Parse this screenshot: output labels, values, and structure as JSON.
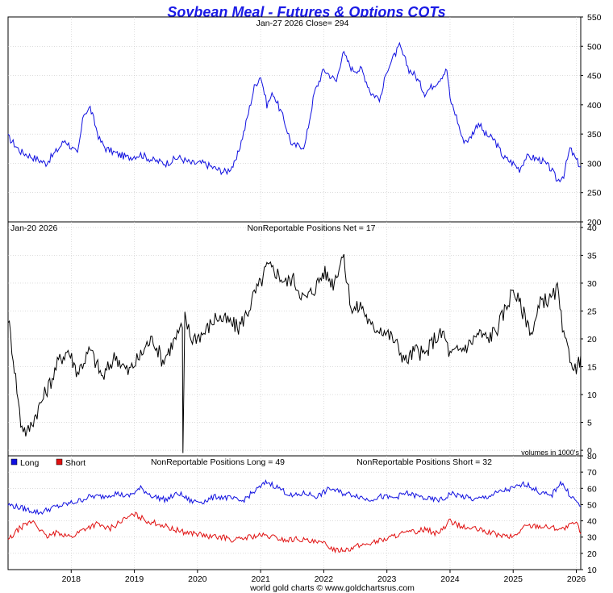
{
  "title": "Soybean Meal - Futures & Options COTs",
  "footer": "world gold charts © www.goldchartsrus.com",
  "colors": {
    "title": "#1a1ae6",
    "price": "#1010e0",
    "net": "#000000",
    "long": "#1010e0",
    "short": "#e01010",
    "grid": "#c8c8c8"
  },
  "chart_data": [
    {
      "type": "line",
      "panel": "price",
      "header": "Jan-27  2026   Close= 294",
      "ylim": [
        200,
        550
      ],
      "yticks": [
        200,
        250,
        300,
        350,
        400,
        450,
        500,
        550
      ],
      "grid": true,
      "series": [
        {
          "color": "#1010e0",
          "x": [
            2017.0,
            2017.2,
            2017.4,
            2017.6,
            2017.8,
            2017.9,
            2018.1,
            2018.2,
            2018.3,
            2018.45,
            2018.55,
            2018.75,
            2018.9,
            2019.1,
            2019.3,
            2019.5,
            2019.7,
            2019.9,
            2020.1,
            2020.3,
            2020.45,
            2020.6,
            2020.75,
            2020.9,
            2021.0,
            2021.1,
            2021.2,
            2021.35,
            2021.5,
            2021.7,
            2021.85,
            2022.0,
            2022.2,
            2022.3,
            2022.45,
            2022.6,
            2022.75,
            2022.9,
            2023.0,
            2023.1,
            2023.2,
            2023.35,
            2023.45,
            2023.6,
            2023.8,
            2023.95,
            2024.0,
            2024.1,
            2024.2,
            2024.3,
            2024.45,
            2024.55,
            2024.7,
            2024.85,
            2025.0,
            2025.1,
            2025.2,
            2025.3,
            2025.45,
            2025.6,
            2025.7,
            2025.8,
            2025.9,
            2026.0,
            2026.07
          ],
          "y": [
            345,
            320,
            310,
            300,
            325,
            340,
            315,
            385,
            395,
            340,
            325,
            315,
            310,
            315,
            305,
            300,
            310,
            300,
            300,
            290,
            285,
            300,
            360,
            430,
            450,
            400,
            420,
            380,
            330,
            330,
            420,
            460,
            440,
            490,
            460,
            460,
            420,
            410,
            460,
            480,
            500,
            460,
            450,
            420,
            440,
            460,
            410,
            380,
            340,
            340,
            370,
            350,
            340,
            310,
            300,
            290,
            310,
            310,
            305,
            290,
            270,
            280,
            325,
            305,
            294
          ]
        }
      ]
    },
    {
      "type": "line",
      "panel": "net",
      "header_date": "Jan-20  2026",
      "header": "NonReportable Positions Net = 17",
      "units_note": "volumes in 1000's",
      "ylim": [
        -1,
        41
      ],
      "yticks": [
        0,
        5,
        10,
        15,
        20,
        25,
        30,
        35,
        40
      ],
      "grid": true,
      "series": [
        {
          "color": "#000000",
          "x": [
            2017.0,
            2017.1,
            2017.2,
            2017.3,
            2017.5,
            2017.7,
            2017.8,
            2017.95,
            2018.1,
            2018.3,
            2018.5,
            2018.7,
            2018.9,
            2019.1,
            2019.2,
            2019.3,
            2019.45,
            2019.6,
            2019.7,
            2019.76,
            2019.77,
            2019.8,
            2019.9,
            2020.1,
            2020.3,
            2020.5,
            2020.65,
            2020.8,
            2020.9,
            2021.0,
            2021.1,
            2021.25,
            2021.4,
            2021.5,
            2021.7,
            2021.85,
            2022.0,
            2022.15,
            2022.3,
            2022.45,
            2022.6,
            2022.75,
            2022.9,
            2023.1,
            2023.2,
            2023.3,
            2023.45,
            2023.6,
            2023.75,
            2023.9,
            2024.0,
            2024.15,
            2024.3,
            2024.45,
            2024.6,
            2024.75,
            2024.9,
            2025.0,
            2025.15,
            2025.3,
            2025.45,
            2025.6,
            2025.7,
            2025.8,
            2025.9,
            2026.0,
            2026.07
          ],
          "y": [
            24,
            15,
            5,
            3,
            8,
            13,
            16,
            18,
            14,
            18,
            13,
            17,
            14,
            17,
            19,
            20,
            16,
            19,
            21,
            22,
            -0.5,
            24,
            20,
            21,
            24,
            23,
            22,
            25,
            28,
            30,
            33,
            32,
            30,
            31,
            27,
            29,
            32,
            30,
            35,
            25,
            26,
            22,
            22,
            20,
            18,
            16,
            18,
            17,
            20,
            21,
            17,
            18,
            19,
            21,
            20,
            22,
            26,
            29,
            25,
            21,
            27,
            27,
            29,
            20,
            17,
            14,
            17
          ]
        }
      ]
    },
    {
      "type": "line",
      "panel": "long_short",
      "header_long": "NonReportable Positions Long = 49",
      "header_short": "NonReportable Positions Short = 32",
      "legend": [
        "Long",
        "Short"
      ],
      "ylim": [
        10,
        80
      ],
      "yticks": [
        10,
        20,
        30,
        40,
        50,
        60,
        70,
        80
      ],
      "grid": true,
      "xtick_labels": [
        "2018",
        "2019",
        "2020",
        "2021",
        "2022",
        "2023",
        "2024",
        "2025",
        "2026"
      ],
      "series": [
        {
          "name": "Long",
          "color": "#1010e0",
          "x": [
            2017.0,
            2017.3,
            2017.5,
            2017.7,
            2017.9,
            2018.1,
            2018.3,
            2018.5,
            2018.7,
            2018.9,
            2019.1,
            2019.3,
            2019.5,
            2019.7,
            2019.9,
            2020.1,
            2020.3,
            2020.5,
            2020.7,
            2020.9,
            2021.1,
            2021.3,
            2021.5,
            2021.7,
            2021.9,
            2022.1,
            2022.3,
            2022.5,
            2022.7,
            2022.9,
            2023.1,
            2023.3,
            2023.5,
            2023.7,
            2023.9,
            2024.0,
            2024.2,
            2024.4,
            2024.6,
            2024.8,
            2025.0,
            2025.2,
            2025.4,
            2025.6,
            2025.75,
            2025.9,
            2026.07
          ],
          "y": [
            50,
            47,
            45,
            48,
            50,
            52,
            55,
            55,
            57,
            55,
            60,
            55,
            53,
            57,
            52,
            52,
            55,
            54,
            52,
            58,
            64,
            60,
            55,
            57,
            55,
            60,
            57,
            56,
            53,
            55,
            54,
            57,
            55,
            53,
            53,
            57,
            55,
            53,
            55,
            58,
            60,
            63,
            58,
            55,
            64,
            56,
            49
          ]
        },
        {
          "name": "Short",
          "color": "#e01010",
          "x": [
            2017.0,
            2017.2,
            2017.4,
            2017.6,
            2017.8,
            2018.0,
            2018.2,
            2018.4,
            2018.6,
            2018.8,
            2019.0,
            2019.2,
            2019.4,
            2019.6,
            2019.8,
            2020.0,
            2020.2,
            2020.4,
            2020.6,
            2020.8,
            2021.0,
            2021.2,
            2021.4,
            2021.6,
            2021.8,
            2022.0,
            2022.2,
            2022.4,
            2022.6,
            2022.8,
            2023.0,
            2023.2,
            2023.4,
            2023.6,
            2023.8,
            2024.0,
            2024.2,
            2024.4,
            2024.6,
            2024.8,
            2025.0,
            2025.2,
            2025.4,
            2025.6,
            2025.8,
            2026.0,
            2026.07
          ],
          "y": [
            28,
            36,
            40,
            30,
            33,
            30,
            35,
            38,
            35,
            40,
            44,
            40,
            38,
            35,
            33,
            32,
            30,
            30,
            28,
            30,
            31,
            30,
            28,
            29,
            27,
            26,
            22,
            23,
            25,
            27,
            29,
            32,
            33,
            35,
            32,
            40,
            36,
            35,
            33,
            31,
            30,
            37,
            37,
            36,
            35,
            39,
            32
          ]
        }
      ]
    }
  ]
}
